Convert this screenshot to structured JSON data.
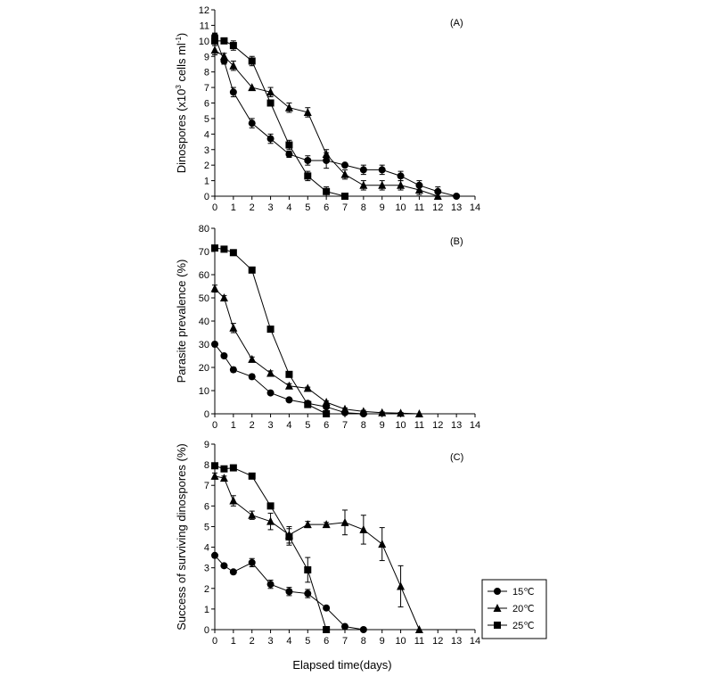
{
  "figure": {
    "x_axis_title": "Elapsed time(days)",
    "legend": {
      "entries": [
        {
          "label": "15℃",
          "marker": "circle"
        },
        {
          "label": "20℃",
          "marker": "triangle"
        },
        {
          "label": "25℃",
          "marker": "square"
        }
      ]
    }
  },
  "chart_data": [
    {
      "type": "line",
      "panel_label": "(A)",
      "ylabel_main": "Dinospores (x10",
      "ylabel_sup": "3",
      "ylabel_mid": " cells ml",
      "ylabel_sup2": "-1",
      "ylabel_end": ")",
      "xlim": [
        0,
        14
      ],
      "ylim": [
        0,
        12
      ],
      "x_ticks": [
        0,
        1,
        2,
        3,
        4,
        5,
        6,
        7,
        8,
        9,
        10,
        11,
        12,
        13,
        14
      ],
      "y_ticks": [
        0,
        1,
        2,
        3,
        4,
        5,
        6,
        7,
        8,
        9,
        10,
        11,
        12
      ],
      "series": [
        {
          "name": "15℃",
          "marker": "circle",
          "x": [
            0,
            0.5,
            1,
            2,
            3,
            4,
            5,
            6,
            7,
            8,
            9,
            10,
            11,
            12,
            13
          ],
          "y": [
            10.3,
            8.7,
            6.7,
            4.7,
            3.7,
            2.7,
            2.3,
            2.3,
            2.0,
            1.7,
            1.7,
            1.3,
            0.7,
            0.3,
            0.0
          ],
          "err": [
            0.2,
            0.2,
            0.3,
            0.3,
            0.3,
            0.2,
            0.3,
            0.5,
            0.0,
            0.3,
            0.3,
            0.3,
            0.3,
            0.3,
            0.0
          ]
        },
        {
          "name": "20℃",
          "marker": "triangle",
          "x": [
            0,
            0.5,
            1,
            2,
            3,
            4,
            5,
            6,
            7,
            8,
            9,
            10,
            11,
            12
          ],
          "y": [
            9.4,
            9.0,
            8.4,
            7.0,
            6.7,
            5.7,
            5.4,
            2.7,
            1.4,
            0.7,
            0.7,
            0.7,
            0.4,
            0.0
          ],
          "err": [
            0.3,
            0.2,
            0.3,
            0.0,
            0.3,
            0.3,
            0.3,
            0.3,
            0.3,
            0.3,
            0.3,
            0.3,
            0.3,
            0.0
          ]
        },
        {
          "name": "25℃",
          "marker": "square",
          "x": [
            0,
            0.5,
            1,
            2,
            3,
            4,
            5,
            6,
            7
          ],
          "y": [
            10.0,
            10.0,
            9.7,
            8.7,
            6.0,
            3.3,
            1.3,
            0.3,
            0.0
          ],
          "err": [
            0.3,
            0.0,
            0.3,
            0.3,
            0.0,
            0.3,
            0.3,
            0.3,
            0.0
          ]
        }
      ]
    },
    {
      "type": "line",
      "panel_label": "(B)",
      "ylabel": "Parasite prevalence (%)",
      "xlim": [
        0,
        14
      ],
      "ylim": [
        0,
        80
      ],
      "x_ticks": [
        0,
        1,
        2,
        3,
        4,
        5,
        6,
        7,
        8,
        9,
        10,
        11,
        12,
        13,
        14
      ],
      "y_ticks": [
        0,
        10,
        20,
        30,
        40,
        50,
        60,
        70,
        80
      ],
      "series": [
        {
          "name": "15℃",
          "marker": "circle",
          "x": [
            0,
            0.5,
            1,
            2,
            3,
            4,
            5,
            6,
            7,
            8
          ],
          "y": [
            30,
            25,
            19,
            16,
            9,
            6,
            4.5,
            3,
            0.5,
            0
          ],
          "err": [
            1,
            0.5,
            1,
            1,
            0.5,
            0.5,
            0.5,
            0.5,
            0.5,
            0
          ]
        },
        {
          "name": "20℃",
          "marker": "triangle",
          "x": [
            0,
            0.5,
            1,
            2,
            3,
            4,
            5,
            6,
            7,
            8,
            9,
            10,
            11
          ],
          "y": [
            54,
            50,
            37,
            23.5,
            17.5,
            12,
            11,
            5,
            2,
            1,
            0.5,
            0.3,
            0
          ],
          "err": [
            1.5,
            1,
            2,
            1,
            1,
            1,
            0.5,
            0.5,
            0.5,
            0.5,
            0.3,
            0.3,
            0
          ]
        },
        {
          "name": "25℃",
          "marker": "square",
          "x": [
            0,
            0.5,
            1,
            2,
            3,
            4,
            5,
            6
          ],
          "y": [
            71.5,
            71,
            69.5,
            62,
            36.5,
            17,
            4,
            0
          ],
          "err": [
            0.5,
            0.5,
            0.5,
            0.5,
            0.5,
            0.5,
            0.5,
            0
          ]
        }
      ]
    },
    {
      "type": "line",
      "panel_label": "(C)",
      "ylabel": "Success of surviving dinospores (%)",
      "xlim": [
        0,
        14
      ],
      "ylim": [
        0,
        9
      ],
      "x_ticks": [
        0,
        1,
        2,
        3,
        4,
        5,
        6,
        7,
        8,
        9,
        10,
        11,
        12,
        13,
        14
      ],
      "y_ticks": [
        0,
        1,
        2,
        3,
        4,
        5,
        6,
        7,
        8,
        9
      ],
      "series": [
        {
          "name": "15℃",
          "marker": "circle",
          "x": [
            0,
            0.5,
            1,
            2,
            3,
            4,
            5,
            6,
            7,
            8
          ],
          "y": [
            3.6,
            3.1,
            2.8,
            3.25,
            2.2,
            1.85,
            1.75,
            1.05,
            0.15,
            0.0
          ],
          "err": [
            0.1,
            0.05,
            0.05,
            0.2,
            0.2,
            0.2,
            0.2,
            0.05,
            0.1,
            0
          ]
        },
        {
          "name": "20℃",
          "marker": "triangle",
          "x": [
            0,
            0.5,
            1,
            2,
            3,
            4,
            5,
            6,
            7,
            8,
            9,
            10,
            11
          ],
          "y": [
            7.45,
            7.35,
            6.25,
            5.55,
            5.25,
            4.6,
            5.1,
            5.1,
            5.2,
            4.85,
            4.15,
            2.1,
            0.0
          ],
          "err": [
            0.15,
            0.1,
            0.25,
            0.2,
            0.4,
            0.4,
            0.15,
            0.1,
            0.6,
            0.7,
            0.8,
            1.0,
            0
          ]
        },
        {
          "name": "25℃",
          "marker": "square",
          "x": [
            0,
            0.5,
            1,
            2,
            3,
            4,
            5,
            6
          ],
          "y": [
            7.95,
            7.8,
            7.85,
            7.45,
            6.0,
            4.5,
            2.9,
            0.0
          ],
          "err": [
            0.05,
            0.05,
            0.05,
            0.05,
            0.05,
            0.4,
            0.6,
            0
          ]
        }
      ]
    }
  ]
}
